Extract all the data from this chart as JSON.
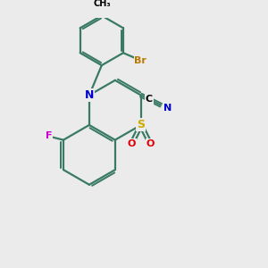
{
  "bg_color": "#ebebeb",
  "bond_color": "#3a7a65",
  "bond_width": 1.6,
  "S_color": "#ccaa00",
  "N_color": "#0000cc",
  "F_color": "#cc00cc",
  "Br_color": "#bb7700",
  "O_color": "#dd0000",
  "C_color": "#000000",
  "figsize": [
    3.0,
    3.0
  ],
  "dpi": 100,
  "xlim": [
    0,
    10
  ],
  "ylim": [
    0,
    10
  ]
}
